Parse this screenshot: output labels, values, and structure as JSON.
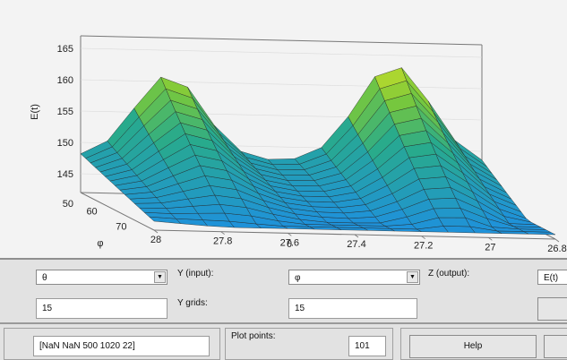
{
  "plot": {
    "zlabel": "E(t)",
    "xlabel": "θ",
    "ylabel": "φ",
    "z_ticks": [
      "165",
      "160",
      "155",
      "150",
      "145",
      "50"
    ],
    "x_ticks": [
      "28",
      "27.8",
      "27.6",
      "27.4",
      "27.2",
      "27",
      "26.8"
    ],
    "y_ticks": [
      "60",
      "70"
    ]
  },
  "panel": {
    "x_select_value": "θ",
    "y_input_label": "Y (input):",
    "y_select_value": "φ",
    "z_output_label": "Z (output):",
    "z_select_value": "E(t)",
    "x_grids_value": "15",
    "y_grids_label": "Y grids:",
    "y_grids_value": "15",
    "ref_input_value": "[NaN NaN 500 1020 22]",
    "plot_points_label": "Plot points:",
    "plot_points_value": "101",
    "help_label": "Help"
  },
  "colors": {
    "surface_low": "#1e90e0",
    "surface_mid": "#2aa57a",
    "surface_high": "#f0e820",
    "background": "#f3f3f3",
    "panel": "#e2e2e2"
  }
}
